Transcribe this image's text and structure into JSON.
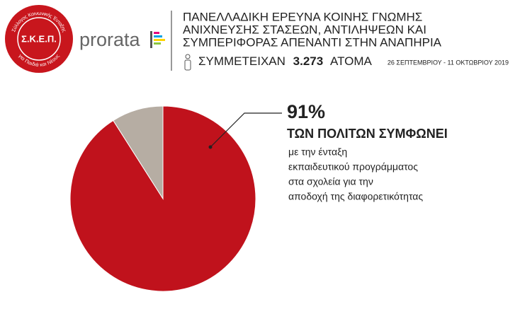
{
  "header": {
    "logo_initials": "Σ.Κ.Ε.Π.",
    "logo_ring_top": "Σύλλογος Κοινωνικής Ένταξης",
    "logo_ring_bottom": "για Παιδιά και Νέους",
    "brand": "prorata",
    "title_lines": [
      "ΠΑΝΕΛΛΑΔΙΚΗ ΕΡΕΥΝΑ ΚΟΙΝΗΣ ΓΝΩΜΗΣ",
      "ΑΝΙΧΝΕΥΣΗΣ ΣΤΑΣΕΩΝ, ΑΝΤΙΛΗΨΕΩΝ ΚΑΙ",
      "ΣΥΜΠΕΡΙΦΟΡΑΣ ΑΠΕΝΑΝΤΙ ΣΤΗΝ ΑΝΑΠΗΡΙΑ"
    ],
    "participants_prefix": "ΣΥΜΜΕΤΕΙΧΑΝ",
    "participants_count": "3.273",
    "participants_suffix": "ΑΤΟΜΑ",
    "dates": "26 ΣΕΠΤΕΜΒΡΙΟΥ - 11 ΟΚΤΩΒΡΙΟΥ 2019"
  },
  "chart_data": {
    "type": "pie",
    "values": [
      91,
      9
    ],
    "value_labels": [
      "91%",
      null
    ],
    "colors": [
      "#c0121c",
      "#b6ada3"
    ],
    "annotation_heading": "ΤΩΝ ΠΟΛΙΤΩΝ ΣΥΜΦΩΝΕΙ",
    "annotation_lines": [
      "με την ένταξη",
      "εκπαιδευτικού προγράμματος",
      "στα σχολεία για την",
      "αποδοχή της διαφορετικότητας"
    ]
  }
}
